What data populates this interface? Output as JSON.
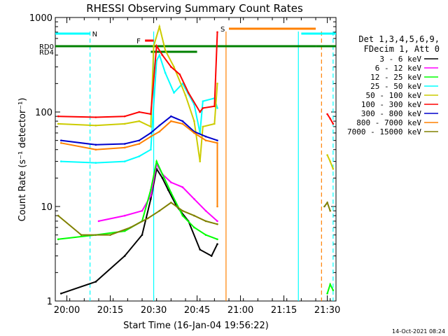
{
  "chart_data": {
    "type": "line",
    "title": "RHESSI Observing Summary Count Rates",
    "xlabel": "Start Time (16-Jan-04 19:56:22)",
    "ylabel": "Count Rate (s⁻¹ detector⁻¹)",
    "yscale": "log",
    "ylim": [
      1,
      1000
    ],
    "xlim": [
      "19:56",
      "21:33"
    ],
    "x_ticks": [
      "20:00",
      "20:15",
      "20:30",
      "20:45",
      "21:00",
      "21:15",
      "21:30"
    ],
    "y_ticks": [
      "1",
      "10",
      "100",
      "1000"
    ],
    "timestamp": "14-Oct-2021 08:24",
    "legend_header": [
      "Det 1,3,4,5,6,9,",
      "FDecim 1, Att 0"
    ],
    "legend_position": "right",
    "series": [
      {
        "name": "3 - 6 keV",
        "color": "#000000",
        "points": [
          [
            "19:58",
            1.2
          ],
          [
            "20:10",
            1.6
          ],
          [
            "20:20",
            3
          ],
          [
            "20:26",
            5
          ],
          [
            "20:29",
            12
          ],
          [
            "20:31",
            25
          ],
          [
            "20:33",
            20
          ],
          [
            "20:35",
            15
          ],
          [
            "20:38",
            10
          ],
          [
            "20:42",
            7
          ],
          [
            "20:46",
            3.5
          ],
          [
            "20:50",
            3
          ],
          [
            "20:52",
            4
          ]
        ]
      },
      {
        "name": "6 - 12 keV",
        "color": "#ff00ff",
        "points": [
          [
            "20:11",
            7
          ],
          [
            "20:20",
            8
          ],
          [
            "20:26",
            9
          ],
          [
            "20:29",
            13
          ],
          [
            "20:31",
            28
          ],
          [
            "20:33",
            22
          ],
          [
            "20:36",
            18
          ],
          [
            "20:40",
            16
          ],
          [
            "20:44",
            12
          ],
          [
            "20:48",
            9
          ],
          [
            "20:52",
            7
          ]
        ]
      },
      {
        "name": "12 - 25 keV",
        "color": "#00ff00",
        "points": [
          [
            "19:57",
            4.5
          ],
          [
            "20:10",
            5
          ],
          [
            "20:20",
            5.5
          ],
          [
            "20:26",
            7
          ],
          [
            "20:29",
            15
          ],
          [
            "20:31",
            30
          ],
          [
            "20:33",
            22
          ],
          [
            "20:36",
            14
          ],
          [
            "20:40",
            8
          ],
          [
            "20:44",
            6
          ],
          [
            "20:48",
            5
          ],
          [
            "20:52",
            4.5
          ],
          [
            "21:30",
            1.2
          ],
          [
            "21:31",
            1.5
          ],
          [
            "21:32",
            1.3
          ]
        ]
      },
      {
        "name": "25 - 50 keV",
        "color": "#00ffff",
        "points": [
          [
            "19:58",
            30
          ],
          [
            "20:10",
            29
          ],
          [
            "20:20",
            30
          ],
          [
            "20:25",
            34
          ],
          [
            "20:29",
            40
          ],
          [
            "20:31",
            350
          ],
          [
            "20:32",
            400
          ],
          [
            "20:34",
            260
          ],
          [
            "20:37",
            160
          ],
          [
            "20:40",
            200
          ],
          [
            "20:44",
            120
          ],
          [
            "20:46",
            60
          ],
          [
            "20:47",
            130
          ],
          [
            "20:51",
            140
          ],
          [
            "20:52",
            110
          ]
        ]
      },
      {
        "name": "50 - 100 keV",
        "color": "#cccc00",
        "points": [
          [
            "19:57",
            75
          ],
          [
            "20:10",
            72
          ],
          [
            "20:20",
            75
          ],
          [
            "20:25",
            80
          ],
          [
            "20:29",
            70
          ],
          [
            "20:30",
            500
          ],
          [
            "20:32",
            800
          ],
          [
            "20:34",
            450
          ],
          [
            "20:37",
            300
          ],
          [
            "20:41",
            150
          ],
          [
            "20:44",
            80
          ],
          [
            "20:46",
            30
          ],
          [
            "20:47",
            70
          ],
          [
            "20:51",
            75
          ],
          [
            "20:52",
            200
          ],
          [
            "21:30",
            35
          ],
          [
            "21:31",
            30
          ],
          [
            "21:32",
            25
          ]
        ]
      },
      {
        "name": "100 - 300 keV",
        "color": "#ff0000",
        "points": [
          [
            "19:57",
            90
          ],
          [
            "20:10",
            88
          ],
          [
            "20:20",
            90
          ],
          [
            "20:25",
            100
          ],
          [
            "20:29",
            95
          ],
          [
            "20:31",
            500
          ],
          [
            "20:33",
            400
          ],
          [
            "20:36",
            300
          ],
          [
            "20:39",
            250
          ],
          [
            "20:42",
            160
          ],
          [
            "20:46",
            100
          ],
          [
            "20:47",
            110
          ],
          [
            "20:51",
            115
          ],
          [
            "20:52",
            700
          ],
          [
            "21:30",
            95
          ],
          [
            "21:31",
            85
          ],
          [
            "21:32",
            75
          ]
        ]
      },
      {
        "name": "300 - 800 keV",
        "color": "#0000cc",
        "points": [
          [
            "19:58",
            50
          ],
          [
            "20:10",
            45
          ],
          [
            "20:20",
            46
          ],
          [
            "20:25",
            50
          ],
          [
            "20:29",
            60
          ],
          [
            "20:32",
            72
          ],
          [
            "20:36",
            90
          ],
          [
            "20:40",
            80
          ],
          [
            "20:44",
            62
          ],
          [
            "20:48",
            55
          ],
          [
            "20:52",
            50
          ]
        ]
      },
      {
        "name": "800 - 7000 keV",
        "color": "#ff8000",
        "points": [
          [
            "19:58",
            47
          ],
          [
            "20:10",
            40
          ],
          [
            "20:20",
            42
          ],
          [
            "20:25",
            46
          ],
          [
            "20:29",
            55
          ],
          [
            "20:32",
            62
          ],
          [
            "20:36",
            80
          ],
          [
            "20:40",
            75
          ],
          [
            "20:44",
            60
          ],
          [
            "20:48",
            50
          ],
          [
            "20:52",
            47
          ],
          [
            "20:52",
            10
          ]
        ]
      },
      {
        "name": "7000 - 15000 keV",
        "color": "#808000",
        "points": [
          [
            "19:57",
            8
          ],
          [
            "20:05",
            5
          ],
          [
            "20:15",
            5
          ],
          [
            "20:22",
            6
          ],
          [
            "20:28",
            7.5
          ],
          [
            "20:32",
            9
          ],
          [
            "20:36",
            11
          ],
          [
            "20:40",
            9
          ],
          [
            "20:44",
            8
          ],
          [
            "20:48",
            7
          ],
          [
            "20:52",
            6.5
          ],
          [
            "21:29",
            10
          ],
          [
            "21:30",
            11
          ],
          [
            "21:31",
            9
          ]
        ]
      }
    ],
    "flag_bars": [
      {
        "label": "N",
        "color": "#00ffff",
        "segments": [
          [
            "19:56",
            "20:08"
          ],
          [
            "21:21",
            "21:33"
          ]
        ]
      },
      {
        "label": "F",
        "color": "#ff0000",
        "segments": [
          [
            "20:27",
            "20:30"
          ]
        ]
      },
      {
        "label": "S",
        "color": "#ff8000",
        "segments": [
          [
            "20:56",
            "21:26"
          ]
        ]
      },
      {
        "label": "RD0",
        "color": "#008000",
        "segments": [
          [
            "19:56",
            "21:26"
          ],
          [
            "21:26",
            "21:33"
          ]
        ]
      },
      {
        "label": "RD4",
        "color": "#008000",
        "segments": [
          [
            "20:29",
            "20:45"
          ]
        ]
      }
    ],
    "vertical_markers": [
      {
        "time": "20:08",
        "color": "#00ffff",
        "style": "dashed"
      },
      {
        "time": "20:30",
        "color": "#00ffff",
        "style": "solid"
      },
      {
        "time": "20:55",
        "color": "#ff8000",
        "style": "solid"
      },
      {
        "time": "21:20",
        "color": "#00ffff",
        "style": "solid"
      },
      {
        "time": "21:28",
        "color": "#ff8000",
        "style": "dashed"
      },
      {
        "time": "21:32",
        "color": "#00ffff",
        "style": "dashed"
      }
    ]
  }
}
